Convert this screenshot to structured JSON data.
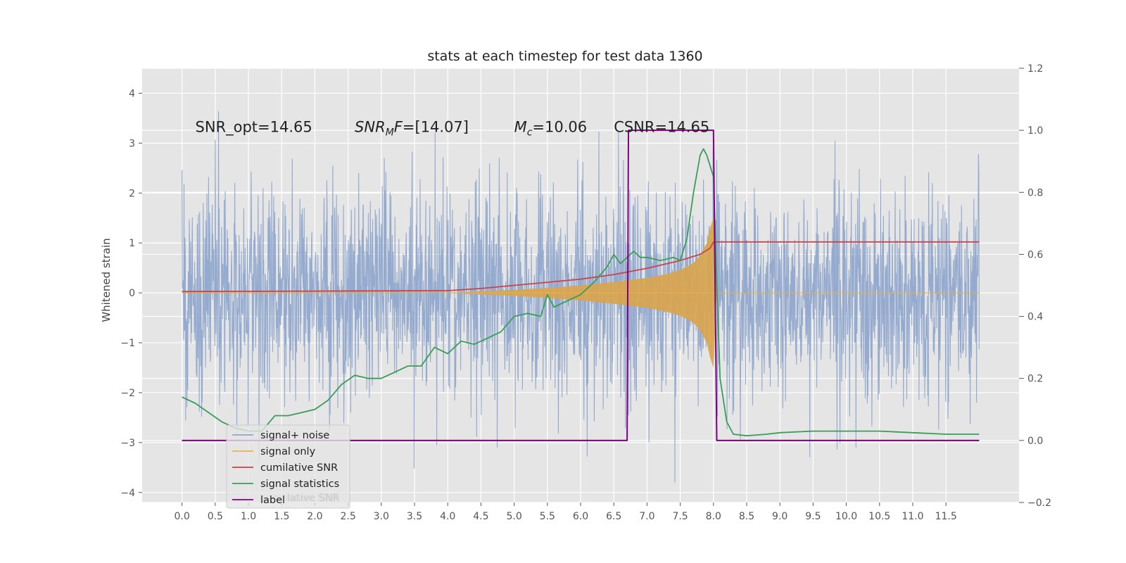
{
  "chart_data": {
    "type": "line",
    "title": "stats at each timestep for test data 1360",
    "xlabel": "",
    "ylabel": "Whitened strain",
    "xlim": [
      -0.6,
      12.6
    ],
    "ylim": [
      -4.2,
      4.5
    ],
    "y2lim": [
      -0.2,
      1.2
    ],
    "grid": true,
    "x_ticks": [
      0.0,
      0.5,
      1.0,
      1.5,
      2.0,
      2.5,
      3.0,
      3.5,
      4.0,
      4.5,
      5.0,
      5.5,
      6.0,
      6.5,
      7.0,
      7.5,
      8.0,
      8.5,
      9.0,
      9.5,
      10.0,
      10.5,
      11.0,
      11.5
    ],
    "x_tick_labels": [
      "0.0",
      "0.5",
      "1.0",
      "1.5",
      "2.0",
      "2.5",
      "3.0",
      "3.5",
      "4.0",
      "4.5",
      "5.0",
      "5.5",
      "6.0",
      "6.5",
      "7.0",
      "7.5",
      "8.0",
      "8.5",
      "9.0",
      "9.5",
      "10.0",
      "10.5",
      "11.0",
      "11.5"
    ],
    "y_ticks": [
      -4,
      -3,
      -2,
      -1,
      0,
      1,
      2,
      3,
      4
    ],
    "y_tick_labels": [
      "−4",
      "−3",
      "−2",
      "−1",
      "0",
      "1",
      "2",
      "3",
      "4"
    ],
    "y2_ticks": [
      -0.2,
      0.0,
      0.2,
      0.4,
      0.6,
      0.8,
      1.0,
      1.2
    ],
    "y2_tick_labels": [
      "−0.2",
      "0.0",
      "0.2",
      "0.4",
      "0.6",
      "0.8",
      "1.0",
      "1.2"
    ],
    "annotations": [
      {
        "text": "SNR_opt=14.65",
        "x": 0.2,
        "y": 3.35
      },
      {
        "text": "SNR_MF=[14.07]",
        "x": 2.6,
        "y": 3.35
      },
      {
        "text": "M_c=10.06",
        "x": 5.0,
        "y": 3.35
      },
      {
        "text": "CSNR=14.65",
        "x": 6.5,
        "y": 3.35
      }
    ],
    "legend": {
      "placement": "lower-left",
      "entries": [
        "signal+ noise",
        "signal only",
        "cumilative SNR",
        "signal statistics",
        "label"
      ],
      "hidden_entry": "cumilative SNR"
    },
    "series": [
      {
        "name": "signal+ noise",
        "axis": "left",
        "color": "#8fa6cc",
        "description_values": {
          "x_range": [
            0.0,
            12.0
          ],
          "approx_amplitude_range": [
            -3.8,
            4.1
          ]
        }
      },
      {
        "name": "signal only",
        "axis": "left",
        "color": "#e8b04a",
        "x": [
          4.0,
          4.5,
          5.0,
          5.5,
          6.0,
          6.5,
          7.0,
          7.3,
          7.5,
          7.7,
          7.8,
          7.9,
          7.95,
          8.0,
          8.05,
          12.0
        ],
        "envelope": [
          0.0,
          0.03,
          0.06,
          0.1,
          0.15,
          0.22,
          0.3,
          0.38,
          0.46,
          0.6,
          0.75,
          1.0,
          1.3,
          1.5,
          0.0,
          0.0
        ]
      },
      {
        "name": "cumilative SNR",
        "axis": "right",
        "color": "#c9444a",
        "x": [
          0.0,
          4.0,
          4.5,
          5.0,
          5.5,
          6.0,
          6.5,
          7.0,
          7.5,
          7.8,
          7.95,
          8.0,
          12.0
        ],
        "values": [
          0.48,
          0.483,
          0.49,
          0.5,
          0.51,
          0.52,
          0.535,
          0.555,
          0.58,
          0.6,
          0.62,
          0.64,
          0.64
        ]
      },
      {
        "name": "signal statistics",
        "axis": "right",
        "color": "#3a9e5a",
        "x": [
          0.0,
          0.2,
          0.4,
          0.6,
          0.8,
          1.0,
          1.2,
          1.4,
          1.6,
          1.8,
          2.0,
          2.2,
          2.4,
          2.6,
          2.8,
          3.0,
          3.2,
          3.4,
          3.6,
          3.8,
          4.0,
          4.2,
          4.4,
          4.6,
          4.8,
          5.0,
          5.2,
          5.4,
          5.5,
          5.6,
          5.8,
          6.0,
          6.2,
          6.4,
          6.5,
          6.6,
          6.7,
          6.8,
          6.9,
          7.0,
          7.2,
          7.4,
          7.5,
          7.6,
          7.7,
          7.8,
          7.85,
          7.9,
          8.0,
          8.05,
          8.1,
          8.2,
          8.3,
          8.5,
          8.8,
          9.0,
          9.5,
          10.0,
          10.5,
          11.0,
          11.5,
          12.0
        ],
        "values": [
          0.14,
          0.12,
          0.09,
          0.06,
          0.04,
          0.03,
          0.03,
          0.08,
          0.08,
          0.09,
          0.1,
          0.13,
          0.18,
          0.21,
          0.2,
          0.2,
          0.22,
          0.24,
          0.24,
          0.3,
          0.28,
          0.32,
          0.31,
          0.33,
          0.35,
          0.4,
          0.41,
          0.4,
          0.47,
          0.43,
          0.45,
          0.47,
          0.51,
          0.56,
          0.6,
          0.57,
          0.59,
          0.61,
          0.59,
          0.59,
          0.58,
          0.59,
          0.58,
          0.65,
          0.8,
          0.92,
          0.94,
          0.92,
          0.85,
          0.5,
          0.2,
          0.06,
          0.02,
          0.015,
          0.02,
          0.025,
          0.03,
          0.03,
          0.03,
          0.025,
          0.02,
          0.02
        ]
      },
      {
        "name": "label",
        "axis": "right",
        "color": "#800080",
        "x": [
          0.0,
          6.7,
          6.72,
          8.0,
          8.05,
          12.0
        ],
        "values": [
          0.0,
          0.0,
          1.0,
          1.0,
          0.0,
          0.0
        ]
      }
    ]
  }
}
